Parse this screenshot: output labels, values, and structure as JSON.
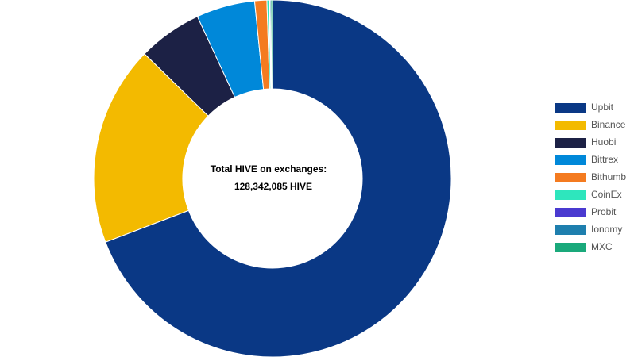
{
  "chart_data": {
    "type": "donut",
    "center_title": "Total HIVE on exchanges:",
    "center_value": "128,342,085 HIVE",
    "categories": [
      "Upbit",
      "Binance",
      "Huobi",
      "Bittrex",
      "Bithumb",
      "CoinEx",
      "Probit",
      "Ionomy",
      "MXC"
    ],
    "values": [
      69.2,
      18.1,
      5.8,
      5.3,
      1.1,
      0.2,
      0.05,
      0.1,
      0.15
    ],
    "colors": [
      "#0a3885",
      "#f3ba00",
      "#1c2145",
      "#0088d9",
      "#f47b20",
      "#2ee6bd",
      "#4a3ad0",
      "#1e7fae",
      "#1aa97b"
    ],
    "legend": "right"
  }
}
